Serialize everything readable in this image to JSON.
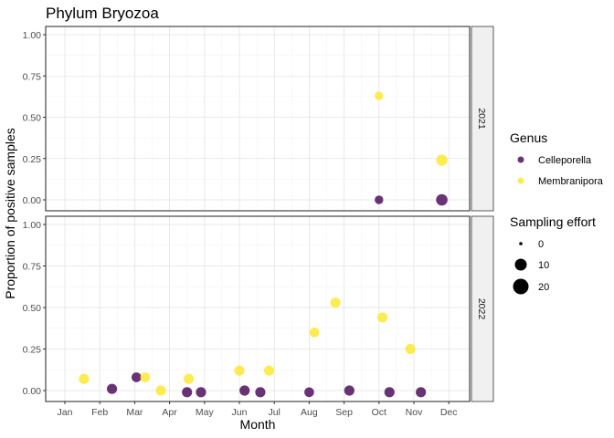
{
  "chart_data": {
    "type": "scatter",
    "title": "Phylum Bryozoa",
    "xlabel": "Month",
    "ylabel": "Proportion of positive samples",
    "x_ticks": [
      "Jan",
      "Feb",
      "Mar",
      "Apr",
      "May",
      "Jun",
      "Jul",
      "Aug",
      "Sep",
      "Oct",
      "Nov",
      "Dec"
    ],
    "y_ticks": [
      "0.00",
      "0.25",
      "0.50",
      "0.75",
      "1.00"
    ],
    "ylim": [
      0,
      1
    ],
    "xlim_month": [
      0.5,
      12.3
    ],
    "grid": true,
    "legend_position": "right",
    "legend_color_title": "Genus",
    "legend_size_title": "Sampling effort",
    "size_legend_values": [
      "0",
      "10",
      "20"
    ],
    "colors": {
      "Celleporella": "#440154",
      "Membranipora": "#FDE725"
    },
    "panels": [
      {
        "strip_label": "2021",
        "series": [
          {
            "name": "Celleporella",
            "points": [
              {
                "month": 10.0,
                "y": 0.0,
                "effort": 8
              },
              {
                "month": 11.8,
                "y": 0.0,
                "effort": 20
              }
            ]
          },
          {
            "name": "Membranipora",
            "points": [
              {
                "month": 10.0,
                "y": 0.63,
                "effort": 8
              },
              {
                "month": 11.8,
                "y": 0.24,
                "effort": 19
              }
            ]
          }
        ]
      },
      {
        "strip_label": "2022",
        "series": [
          {
            "name": "Celleporella",
            "points": [
              {
                "month": 2.35,
                "y": 0.01,
                "effort": 14
              },
              {
                "month": 3.05,
                "y": 0.08,
                "effort": 12
              },
              {
                "month": 4.5,
                "y": -0.01,
                "effort": 14
              },
              {
                "month": 4.9,
                "y": -0.01,
                "effort": 14
              },
              {
                "month": 6.15,
                "y": 0.0,
                "effort": 14
              },
              {
                "month": 6.6,
                "y": -0.01,
                "effort": 14
              },
              {
                "month": 8.0,
                "y": -0.01,
                "effort": 12
              },
              {
                "month": 9.15,
                "y": 0.0,
                "effort": 14
              },
              {
                "month": 10.3,
                "y": -0.01,
                "effort": 14
              },
              {
                "month": 11.2,
                "y": -0.01,
                "effort": 14
              }
            ]
          },
          {
            "name": "Membranipora",
            "points": [
              {
                "month": 1.55,
                "y": 0.07,
                "effort": 14
              },
              {
                "month": 3.3,
                "y": 0.08,
                "effort": 12
              },
              {
                "month": 3.75,
                "y": 0.0,
                "effort": 14
              },
              {
                "month": 4.55,
                "y": 0.07,
                "effort": 14
              },
              {
                "month": 6.0,
                "y": 0.12,
                "effort": 14
              },
              {
                "month": 6.85,
                "y": 0.12,
                "effort": 14
              },
              {
                "month": 8.15,
                "y": 0.35,
                "effort": 12
              },
              {
                "month": 8.75,
                "y": 0.53,
                "effort": 14
              },
              {
                "month": 10.1,
                "y": 0.44,
                "effort": 14
              },
              {
                "month": 10.9,
                "y": 0.25,
                "effort": 14
              }
            ]
          }
        ]
      }
    ]
  }
}
